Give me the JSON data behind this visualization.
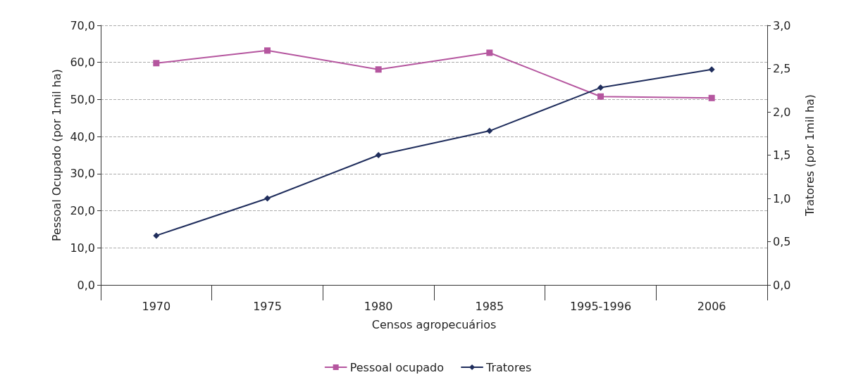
{
  "chart_data": {
    "type": "line",
    "xlabel": "Censos agropecuários",
    "ylabel": "Pessoal Ocupado (por 1mil ha)",
    "y2label": "Tratores (por 1mil ha)",
    "categories": [
      "1970",
      "1975",
      "1980",
      "1985",
      "1995-1996",
      "2006"
    ],
    "series": [
      {
        "name": "Pessoal ocupado",
        "color": "#b5569f",
        "marker": "square",
        "values": [
          59.8,
          63.2,
          58.1,
          62.6,
          50.8,
          50.4
        ]
      },
      {
        "name": "Tratores",
        "color": "#1f2d5c",
        "marker": "diamond",
        "axis": "y2",
        "values": [
          0.57,
          1.0,
          1.5,
          1.78,
          2.28,
          2.49
        ]
      }
    ],
    "ylim": [
      0,
      70
    ],
    "yticks": [
      {
        "value": 0,
        "label": "0,0"
      },
      {
        "value": 10,
        "label": "10,0"
      },
      {
        "value": 20,
        "label": "20,0"
      },
      {
        "value": 30,
        "label": "30,0"
      },
      {
        "value": 40,
        "label": "40,0"
      },
      {
        "value": 50,
        "label": "50,0"
      },
      {
        "value": 60,
        "label": "60,0"
      },
      {
        "value": 70,
        "label": "70,0"
      }
    ],
    "y2lim": [
      0,
      3
    ],
    "y2ticks": [
      {
        "value": 0,
        "label": "0,0"
      },
      {
        "value": 0.5,
        "label": "0,5"
      },
      {
        "value": 1,
        "label": "1,0"
      },
      {
        "value": 1.5,
        "label": "1,5"
      },
      {
        "value": 2,
        "label": "2,0"
      },
      {
        "value": 2.5,
        "label": "2,5"
      },
      {
        "value": 3,
        "label": "3,0"
      }
    ],
    "grid": "y",
    "legend": "bottom",
    "line_style": "solid"
  }
}
